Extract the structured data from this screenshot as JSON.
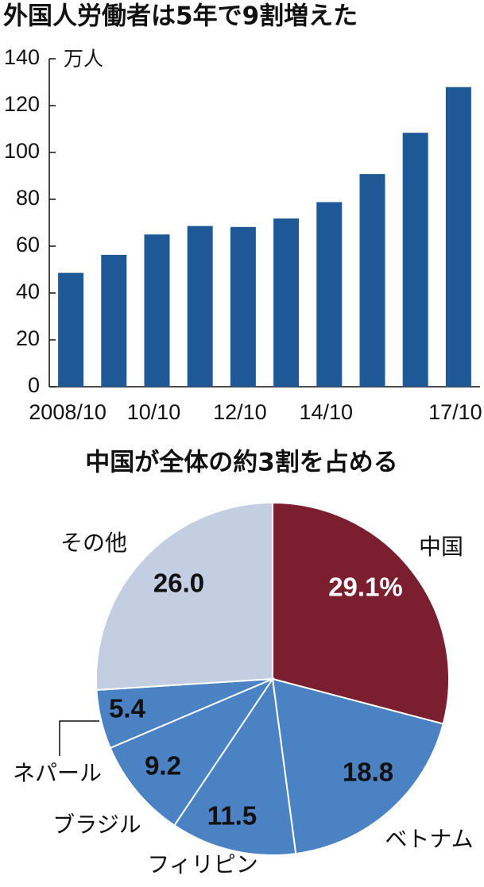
{
  "chart_data": [
    {
      "type": "bar",
      "title": "外国人労働者は5年で9割増えた",
      "y_label": "万人",
      "categories": [
        "2008/10",
        null,
        "10/10",
        null,
        "12/10",
        null,
        "14/10",
        null,
        null,
        "17/10"
      ],
      "values": [
        48.6,
        56.3,
        65.0,
        68.6,
        68.2,
        71.8,
        78.8,
        90.8,
        108.4,
        127.9
      ],
      "color": "#1e5896",
      "ylim": [
        0,
        140
      ],
      "yticks": [
        0,
        20,
        40,
        60,
        80,
        100,
        120,
        140
      ],
      "grid": false
    },
    {
      "type": "pie",
      "title": "中国が全体の約3割を占める",
      "categories": [
        "中国",
        "ベトナム",
        "フィリピン",
        "ブラジル",
        "ネパール",
        "その他"
      ],
      "values": [
        29.1,
        18.8,
        11.5,
        9.2,
        5.4,
        26.0
      ],
      "value_labels": [
        "29.1%",
        "18.8",
        "11.5",
        "9.2",
        "5.4",
        "26.0"
      ],
      "colors": [
        "#7b1f30",
        "#4b82c3",
        "#4b82c3",
        "#4b82c3",
        "#4b82c3",
        "#c3cee2"
      ]
    }
  ]
}
